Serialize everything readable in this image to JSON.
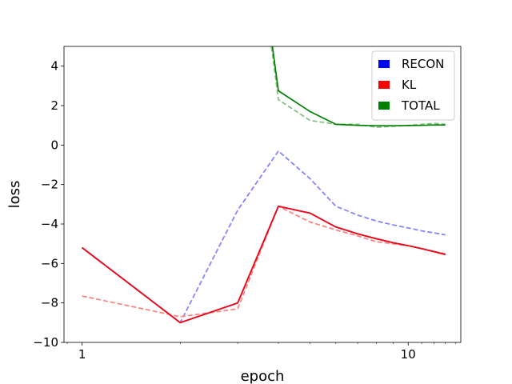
{
  "chart_data": {
    "type": "line",
    "xlabel": "epoch",
    "ylabel": "loss",
    "xscale": "log",
    "xlim": [
      0.88,
      14.5
    ],
    "ylim": [
      -10,
      5
    ],
    "x_tick_labels": [
      {
        "value": 1,
        "label": "1"
      },
      {
        "value": 10,
        "label": "10"
      }
    ],
    "y_tick_labels": [
      {
        "value": 4,
        "label": "4"
      },
      {
        "value": 2,
        "label": "2"
      },
      {
        "value": 0,
        "label": "0"
      },
      {
        "value": -2,
        "label": "−2"
      },
      {
        "value": -4,
        "label": "−4"
      },
      {
        "value": -6,
        "label": "−6"
      },
      {
        "value": -8,
        "label": "−8"
      },
      {
        "value": -10,
        "label": "−10"
      }
    ],
    "x": [
      1,
      2,
      3,
      4,
      5,
      6,
      7,
      8,
      9,
      10,
      11,
      12,
      13
    ],
    "legend": {
      "placement": "top-right",
      "entries": [
        {
          "label": "RECON",
          "color": "#0000ff"
        },
        {
          "label": "KL",
          "color": "#ff0000"
        },
        {
          "label": "TOTAL",
          "color": "#008000"
        }
      ]
    },
    "series": [
      {
        "name": "RECON",
        "style": "dashed",
        "color": "#7f7fff",
        "values": [
          -5.2,
          -9.0,
          -3.3,
          -0.3,
          -1.7,
          -3.1,
          -3.55,
          -3.85,
          -4.05,
          -4.2,
          -4.35,
          -4.45,
          -4.55
        ]
      },
      {
        "name": "KL",
        "style": "dashed",
        "color": "#ff7f7f",
        "values": [
          -7.65,
          -8.7,
          -8.3,
          -3.1,
          -3.9,
          -4.3,
          -4.6,
          -4.9,
          -5.0,
          -5.1,
          -5.25,
          -5.4,
          -5.5
        ]
      },
      {
        "name": "TOTAL",
        "style": "dashed",
        "color": "#7fbf7f",
        "values": [
          null,
          null,
          null,
          2.3,
          1.25,
          1.05,
          1.05,
          0.9,
          0.95,
          1.0,
          1.05,
          1.1,
          1.05
        ]
      },
      {
        "name": "RECON",
        "style": "solid",
        "color": "#0000ff",
        "values": [
          -5.2,
          -9.0,
          -8.0,
          -3.1,
          -3.45,
          -4.15,
          -4.5,
          -4.75,
          -4.95,
          -5.1,
          -5.25,
          -5.4,
          -5.55
        ]
      },
      {
        "name": "KL",
        "style": "solid",
        "color": "#ff0000",
        "values": [
          -5.2,
          -9.0,
          -8.0,
          -3.1,
          -3.45,
          -4.15,
          -4.5,
          -4.75,
          -4.95,
          -5.1,
          -5.25,
          -5.4,
          -5.55
        ]
      },
      {
        "name": "TOTAL",
        "style": "solid",
        "color": "#008000",
        "values": [
          null,
          null,
          null,
          2.75,
          1.7,
          1.05,
          1.0,
          0.98,
          0.98,
          0.99,
          1.0,
          1.02,
          1.02
        ]
      }
    ],
    "offscreen_segments": [
      {
        "name": "TOTAL",
        "style": "dashed",
        "from": [
          3,
          18
        ],
        "to": [
          4,
          2.3
        ]
      },
      {
        "name": "TOTAL",
        "style": "solid",
        "from": [
          3,
          18
        ],
        "to": [
          4,
          2.75
        ]
      }
    ]
  }
}
